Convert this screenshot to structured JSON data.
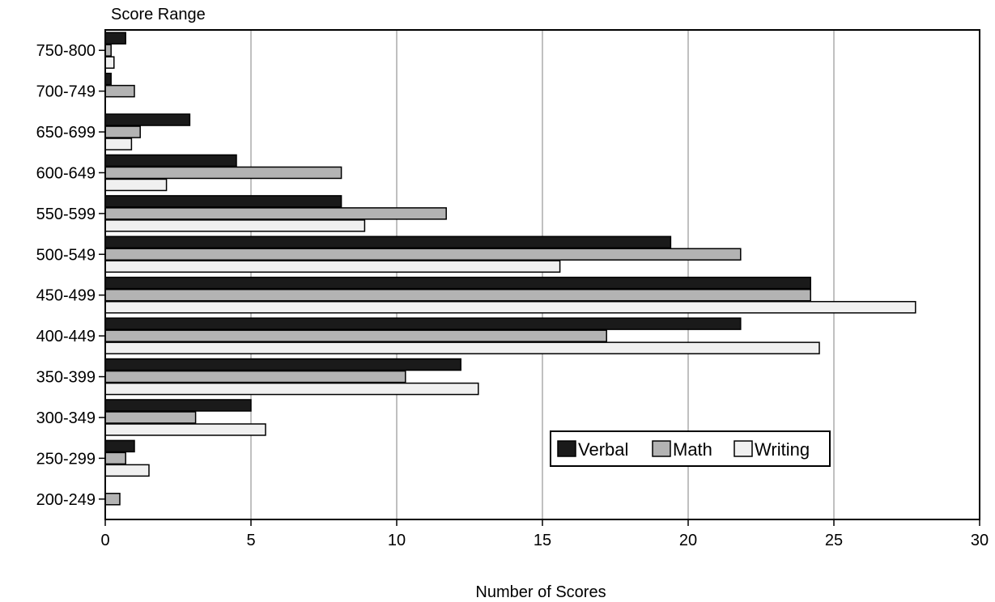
{
  "chart_data": {
    "type": "bar",
    "orientation": "horizontal",
    "categories": [
      "750-800",
      "700-749",
      "650-699",
      "600-649",
      "550-599",
      "500-549",
      "450-499",
      "400-449",
      "350-399",
      "300-349",
      "250-299",
      "200-249"
    ],
    "series": [
      {
        "name": "Verbal",
        "color": "#1a1a1a",
        "values": [
          0.7,
          0.2,
          2.9,
          4.5,
          8.1,
          19.4,
          24.2,
          21.8,
          12.2,
          5.0,
          1.0,
          0.0
        ]
      },
      {
        "name": "Math",
        "color": "#b3b3b3",
        "values": [
          0.2,
          1.0,
          1.2,
          8.1,
          11.7,
          21.8,
          24.2,
          17.2,
          10.3,
          3.1,
          0.7,
          0.5
        ]
      },
      {
        "name": "Writing",
        "color": "#f0f0f0",
        "values": [
          0.3,
          0.0,
          0.9,
          2.1,
          8.9,
          15.6,
          27.8,
          24.5,
          12.8,
          5.5,
          1.5,
          0.0
        ]
      }
    ],
    "xlabel": "Number of Scores",
    "ylabel": "Score Range",
    "xlim": [
      0,
      30
    ],
    "xticks": [
      "0",
      "5",
      "10",
      "15",
      "20",
      "25",
      "30"
    ],
    "grid": "vertical",
    "legend_position": "lower-right"
  }
}
